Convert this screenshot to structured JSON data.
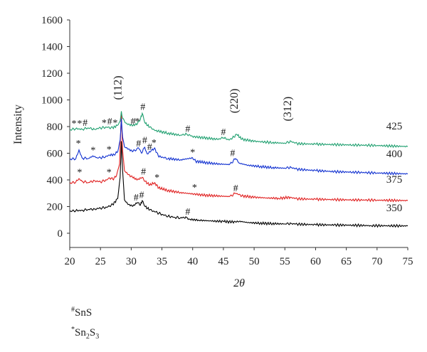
{
  "chart_data": {
    "type": "line",
    "xlabel": "2θ",
    "ylabel": "Intensity",
    "xlim": [
      20,
      75
    ],
    "ylim": [
      0,
      1600
    ],
    "x_ticks": [
      20,
      25,
      30,
      35,
      40,
      45,
      50,
      55,
      60,
      65,
      70,
      75
    ],
    "y_ticks": [
      0,
      200,
      400,
      600,
      800,
      1000,
      1200,
      1400,
      1600
    ],
    "grid": false,
    "series": [
      {
        "name": "350",
        "color": "#000000",
        "points": [
          [
            20,
            165
          ],
          [
            21,
            170
          ],
          [
            22,
            172
          ],
          [
            23,
            178
          ],
          [
            24,
            182
          ],
          [
            25,
            188
          ],
          [
            26,
            195
          ],
          [
            27,
            215
          ],
          [
            27.8,
            260
          ],
          [
            28.2,
            420
          ],
          [
            28.4,
            690
          ],
          [
            28.6,
            470
          ],
          [
            28.9,
            250
          ],
          [
            29.5,
            215
          ],
          [
            30.3,
            205
          ],
          [
            31,
            230
          ],
          [
            31.5,
            210
          ],
          [
            31.8,
            245
          ],
          [
            32.3,
            200
          ],
          [
            33,
            175
          ],
          [
            34,
            160
          ],
          [
            35,
            140
          ],
          [
            36,
            128
          ],
          [
            37,
            120
          ],
          [
            38,
            115
          ],
          [
            39,
            120
          ],
          [
            39.5,
            105
          ],
          [
            41,
            98
          ],
          [
            43,
            92
          ],
          [
            45,
            88
          ],
          [
            47,
            84
          ],
          [
            47.6,
            90
          ],
          [
            49,
            80
          ],
          [
            51,
            75
          ],
          [
            53,
            72
          ],
          [
            55,
            70
          ],
          [
            56,
            74
          ],
          [
            57,
            68
          ],
          [
            60,
            64
          ],
          [
            63,
            62
          ],
          [
            66,
            60
          ],
          [
            69,
            57
          ],
          [
            72,
            56
          ],
          [
            75,
            55
          ]
        ]
      },
      {
        "name": "375",
        "color": "#e02020",
        "points": [
          [
            20,
            375
          ],
          [
            21,
            385
          ],
          [
            21.5,
            410
          ],
          [
            22,
            390
          ],
          [
            23,
            380
          ],
          [
            24,
            395
          ],
          [
            25,
            385
          ],
          [
            26,
            400
          ],
          [
            26.5,
            415
          ],
          [
            27,
            405
          ],
          [
            27.6,
            430
          ],
          [
            28.1,
            520
          ],
          [
            28.4,
            900
          ],
          [
            28.6,
            620
          ],
          [
            28.9,
            470
          ],
          [
            29.5,
            440
          ],
          [
            30.2,
            420
          ],
          [
            31,
            400
          ],
          [
            31.8,
            420
          ],
          [
            32.3,
            390
          ],
          [
            33,
            360
          ],
          [
            33.8,
            380
          ],
          [
            34.5,
            340
          ],
          [
            36,
            320
          ],
          [
            38,
            305
          ],
          [
            40,
            295
          ],
          [
            42,
            285
          ],
          [
            44,
            280
          ],
          [
            46,
            275
          ],
          [
            47,
            300
          ],
          [
            48,
            280
          ],
          [
            50,
            270
          ],
          [
            52,
            265
          ],
          [
            54,
            262
          ],
          [
            56,
            270
          ],
          [
            57,
            258
          ],
          [
            60,
            255
          ],
          [
            63,
            252
          ],
          [
            66,
            250
          ],
          [
            70,
            248
          ],
          [
            75,
            245
          ]
        ]
      },
      {
        "name": "400",
        "color": "#1030d0",
        "points": [
          [
            20,
            555
          ],
          [
            21,
            560
          ],
          [
            21.5,
            625
          ],
          [
            22,
            565
          ],
          [
            23,
            560
          ],
          [
            23.8,
            580
          ],
          [
            24.5,
            565
          ],
          [
            25.5,
            570
          ],
          [
            26.5,
            585
          ],
          [
            27.2,
            590
          ],
          [
            27.8,
            610
          ],
          [
            28.2,
            700
          ],
          [
            28.4,
            860
          ],
          [
            28.6,
            720
          ],
          [
            28.9,
            650
          ],
          [
            29.5,
            630
          ],
          [
            30.3,
            615
          ],
          [
            31.2,
            640
          ],
          [
            31.7,
            600
          ],
          [
            32.2,
            645
          ],
          [
            32.6,
            595
          ],
          [
            33.2,
            615
          ],
          [
            33.8,
            640
          ],
          [
            34.4,
            580
          ],
          [
            35,
            570
          ],
          [
            36,
            560
          ],
          [
            38,
            550
          ],
          [
            40,
            565
          ],
          [
            40.5,
            540
          ],
          [
            42,
            530
          ],
          [
            44,
            520
          ],
          [
            46,
            515
          ],
          [
            47,
            560
          ],
          [
            47.6,
            525
          ],
          [
            49,
            510
          ],
          [
            51,
            500
          ],
          [
            53,
            492
          ],
          [
            55,
            488
          ],
          [
            56,
            495
          ],
          [
            57,
            480
          ],
          [
            60,
            470
          ],
          [
            63,
            462
          ],
          [
            66,
            458
          ],
          [
            70,
            452
          ],
          [
            75,
            445
          ]
        ]
      },
      {
        "name": "425",
        "color": "#20a070",
        "points": [
          [
            20,
            775
          ],
          [
            21,
            785
          ],
          [
            22,
            780
          ],
          [
            23,
            790
          ],
          [
            24,
            780
          ],
          [
            25,
            790
          ],
          [
            26,
            795
          ],
          [
            27,
            790
          ],
          [
            27.8,
            810
          ],
          [
            28.2,
            840
          ],
          [
            28.4,
            915
          ],
          [
            28.6,
            860
          ],
          [
            29,
            830
          ],
          [
            29.5,
            815
          ],
          [
            30.3,
            810
          ],
          [
            31,
            820
          ],
          [
            31.5,
            855
          ],
          [
            31.8,
            900
          ],
          [
            32.2,
            830
          ],
          [
            33,
            795
          ],
          [
            34,
            770
          ],
          [
            36,
            750
          ],
          [
            38,
            735
          ],
          [
            39,
            745
          ],
          [
            40,
            725
          ],
          [
            42,
            715
          ],
          [
            44,
            705
          ],
          [
            45,
            715
          ],
          [
            46,
            700
          ],
          [
            47.2,
            740
          ],
          [
            48,
            705
          ],
          [
            50,
            690
          ],
          [
            53,
            680
          ],
          [
            55,
            675
          ],
          [
            56,
            690
          ],
          [
            57,
            672
          ],
          [
            60,
            668
          ],
          [
            63,
            665
          ],
          [
            66,
            662
          ],
          [
            70,
            658
          ],
          [
            75,
            650
          ]
        ]
      }
    ],
    "series_labels": [
      {
        "text": "425",
        "x": 71.5,
        "y": 780
      },
      {
        "text": "400",
        "x": 71.5,
        "y": 570
      },
      {
        "text": "375",
        "x": 71.5,
        "y": 380
      },
      {
        "text": "350",
        "x": 71.5,
        "y": 165
      }
    ],
    "peak_labels": [
      {
        "text": "(112)",
        "x": 28.4,
        "y": 1000
      },
      {
        "text": "(220)",
        "x": 47.3,
        "y": 900
      },
      {
        "text": "(312)",
        "x": 56.0,
        "y": 840
      }
    ],
    "markers": [
      {
        "text": "*",
        "x": 20.7,
        "y": 800
      },
      {
        "text": "*",
        "x": 21.6,
        "y": 800
      },
      {
        "text": "#",
        "x": 22.5,
        "y": 805
      },
      {
        "text": "*",
        "x": 25.6,
        "y": 805
      },
      {
        "text": "#",
        "x": 26.5,
        "y": 815
      },
      {
        "text": "*",
        "x": 27.4,
        "y": 805
      },
      {
        "text": "#",
        "x": 30.3,
        "y": 815
      },
      {
        "text": "*",
        "x": 31.0,
        "y": 815
      },
      {
        "text": "#",
        "x": 31.9,
        "y": 925
      },
      {
        "text": "#",
        "x": 39.2,
        "y": 760
      },
      {
        "text": "#",
        "x": 45.0,
        "y": 735
      },
      {
        "text": "*",
        "x": 21.4,
        "y": 650
      },
      {
        "text": "*",
        "x": 23.8,
        "y": 600
      },
      {
        "text": "*",
        "x": 26.4,
        "y": 605
      },
      {
        "text": "#",
        "x": 31.2,
        "y": 650
      },
      {
        "text": "#",
        "x": 32.2,
        "y": 675
      },
      {
        "text": "#",
        "x": 33.0,
        "y": 625
      },
      {
        "text": "*",
        "x": 33.7,
        "y": 655
      },
      {
        "text": "*",
        "x": 40.0,
        "y": 585
      },
      {
        "text": "#",
        "x": 46.5,
        "y": 580
      },
      {
        "text": "*",
        "x": 21.6,
        "y": 435
      },
      {
        "text": "*",
        "x": 26.4,
        "y": 435
      },
      {
        "text": "#",
        "x": 32.0,
        "y": 440
      },
      {
        "text": "*",
        "x": 34.2,
        "y": 395
      },
      {
        "text": "*",
        "x": 40.3,
        "y": 320
      },
      {
        "text": "#",
        "x": 47.0,
        "y": 315
      },
      {
        "text": "#",
        "x": 30.8,
        "y": 245
      },
      {
        "text": "#",
        "x": 31.7,
        "y": 265
      },
      {
        "text": "#",
        "x": 39.2,
        "y": 140
      }
    ],
    "legend": [
      {
        "symbol": "#",
        "formula": "SnS"
      },
      {
        "symbol": "*",
        "formula": "Sn2S3"
      }
    ]
  }
}
